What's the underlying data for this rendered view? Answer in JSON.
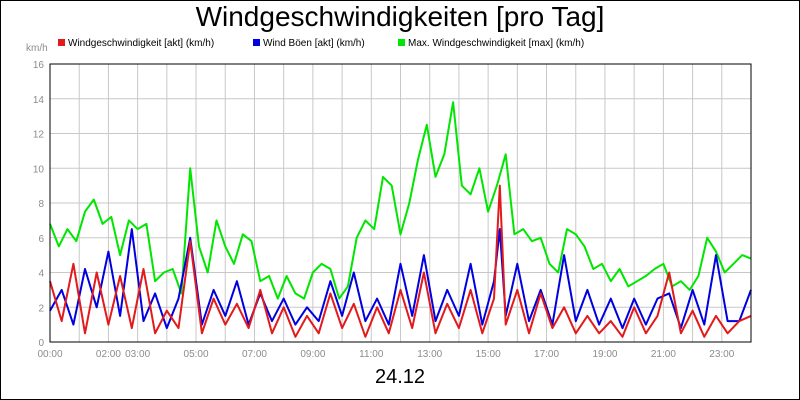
{
  "chart_data": {
    "type": "line",
    "title": "Windgeschwindigkeiten [pro Tag]",
    "ylabel": "km/h",
    "xlabel": "24.12",
    "xlim": [
      0,
      24
    ],
    "ylim": [
      0,
      16
    ],
    "grid": true,
    "legend_placement": "top-left",
    "yticks": [
      "0",
      "2",
      "4",
      "6",
      "8",
      "10",
      "12",
      "14",
      "16"
    ],
    "xticks": [
      {
        "value": 0,
        "label": "00:00"
      },
      {
        "value": 2,
        "label": "02:00"
      },
      {
        "value": 3,
        "label": "03:00"
      },
      {
        "value": 5,
        "label": "05:00"
      },
      {
        "value": 7,
        "label": "07:00"
      },
      {
        "value": 9,
        "label": "09:00"
      },
      {
        "value": 11,
        "label": "11:00"
      },
      {
        "value": 13,
        "label": "13:00"
      },
      {
        "value": 15,
        "label": "15:00"
      },
      {
        "value": 17,
        "label": "17:00"
      },
      {
        "value": 19,
        "label": "19:00"
      },
      {
        "value": 21,
        "label": "21:00"
      },
      {
        "value": 23,
        "label": "23:00"
      }
    ],
    "series": [
      {
        "name": "Windgeschwindigkeit [akt] (km/h)",
        "color": "#e31a1c",
        "x": [
          0,
          0.4,
          0.8,
          1.2,
          1.6,
          2.0,
          2.4,
          2.8,
          3.2,
          3.6,
          4.0,
          4.4,
          4.8,
          5.2,
          5.6,
          6.0,
          6.4,
          6.8,
          7.2,
          7.6,
          8.0,
          8.4,
          8.8,
          9.2,
          9.6,
          10.0,
          10.4,
          10.8,
          11.2,
          11.6,
          12.0,
          12.4,
          12.8,
          13.2,
          13.6,
          14.0,
          14.4,
          14.8,
          15.2,
          15.4,
          15.6,
          16.0,
          16.4,
          16.8,
          17.2,
          17.6,
          18.0,
          18.4,
          18.8,
          19.2,
          19.6,
          20.0,
          20.4,
          20.8,
          21.2,
          21.6,
          22.0,
          22.4,
          22.8,
          23.2,
          23.6,
          24.0
        ],
        "y": [
          3.5,
          1.2,
          4.5,
          0.5,
          4.0,
          1.0,
          3.8,
          0.8,
          4.2,
          0.5,
          1.8,
          0.8,
          5.8,
          0.5,
          2.5,
          1.0,
          2.2,
          0.8,
          3.0,
          0.5,
          2.0,
          0.3,
          1.5,
          0.5,
          2.8,
          0.8,
          2.2,
          0.3,
          2.0,
          0.5,
          3.0,
          0.8,
          4.0,
          0.5,
          2.2,
          0.8,
          3.0,
          0.5,
          2.5,
          9.0,
          1.0,
          3.0,
          0.5,
          2.8,
          0.8,
          2.0,
          0.5,
          1.5,
          0.5,
          1.2,
          0.3,
          2.0,
          0.5,
          1.5,
          4.0,
          0.5,
          1.8,
          0.3,
          1.5,
          0.5,
          1.2,
          1.5
        ]
      },
      {
        "name": "Wind Böen [akt] (km/h)",
        "color": "#0000e0",
        "x": [
          0,
          0.4,
          0.8,
          1.2,
          1.6,
          2.0,
          2.4,
          2.8,
          3.2,
          3.6,
          4.0,
          4.4,
          4.8,
          5.2,
          5.6,
          6.0,
          6.4,
          6.8,
          7.2,
          7.6,
          8.0,
          8.4,
          8.8,
          9.2,
          9.6,
          10.0,
          10.4,
          10.8,
          11.2,
          11.6,
          12.0,
          12.4,
          12.8,
          13.2,
          13.6,
          14.0,
          14.4,
          14.8,
          15.2,
          15.4,
          15.6,
          16.0,
          16.4,
          16.8,
          17.2,
          17.6,
          18.0,
          18.4,
          18.8,
          19.2,
          19.6,
          20.0,
          20.4,
          20.8,
          21.2,
          21.6,
          22.0,
          22.4,
          22.8,
          23.2,
          23.6,
          24.0
        ],
        "y": [
          1.8,
          3.0,
          1.0,
          4.2,
          2.0,
          5.2,
          1.5,
          6.5,
          1.2,
          2.8,
          0.8,
          2.5,
          6.0,
          1.0,
          3.0,
          1.5,
          3.5,
          1.0,
          2.8,
          1.2,
          2.5,
          1.0,
          2.0,
          1.2,
          3.5,
          1.5,
          4.0,
          1.2,
          2.5,
          1.0,
          4.5,
          1.5,
          5.0,
          1.2,
          3.0,
          1.5,
          4.5,
          1.0,
          3.5,
          6.5,
          1.5,
          4.5,
          1.2,
          3.0,
          1.0,
          5.0,
          1.2,
          3.0,
          1.0,
          2.5,
          0.8,
          2.5,
          1.0,
          2.5,
          2.8,
          0.8,
          3.0,
          1.0,
          5.0,
          1.2,
          1.2,
          3.0
        ]
      },
      {
        "name": "Max. Windgeschwindigkeit [max] (km/h)",
        "color": "#00e600",
        "x": [
          0,
          0.3,
          0.6,
          0.9,
          1.2,
          1.5,
          1.8,
          2.1,
          2.4,
          2.7,
          3.0,
          3.3,
          3.6,
          3.9,
          4.2,
          4.5,
          4.8,
          5.1,
          5.4,
          5.7,
          6.0,
          6.3,
          6.6,
          6.9,
          7.2,
          7.5,
          7.8,
          8.1,
          8.4,
          8.7,
          9.0,
          9.3,
          9.6,
          9.9,
          10.2,
          10.5,
          10.8,
          11.1,
          11.4,
          11.7,
          12.0,
          12.3,
          12.6,
          12.9,
          13.2,
          13.5,
          13.8,
          14.1,
          14.4,
          14.7,
          15.0,
          15.3,
          15.6,
          15.9,
          16.2,
          16.5,
          16.8,
          17.1,
          17.4,
          17.7,
          18.0,
          18.3,
          18.6,
          18.9,
          19.2,
          19.5,
          19.8,
          20.1,
          20.4,
          20.7,
          21.0,
          21.3,
          21.6,
          21.9,
          22.2,
          22.5,
          22.8,
          23.1,
          23.4,
          23.7,
          24.0
        ],
        "y": [
          6.8,
          5.5,
          6.5,
          5.8,
          7.5,
          8.2,
          6.8,
          7.2,
          5.0,
          7.0,
          6.5,
          6.8,
          3.5,
          4.0,
          4.2,
          2.8,
          10.0,
          5.5,
          4.0,
          7.0,
          5.5,
          4.5,
          6.2,
          5.8,
          3.5,
          3.8,
          2.5,
          3.8,
          2.8,
          2.5,
          4.0,
          4.5,
          4.2,
          2.5,
          3.2,
          6.0,
          7.0,
          6.5,
          9.5,
          9.0,
          6.2,
          8.0,
          10.5,
          12.5,
          9.5,
          10.8,
          13.8,
          9.0,
          8.5,
          10.0,
          7.5,
          9.0,
          10.8,
          6.2,
          6.5,
          5.8,
          6.0,
          4.5,
          4.0,
          6.5,
          6.2,
          5.5,
          4.2,
          4.5,
          3.5,
          4.2,
          3.2,
          3.5,
          3.8,
          4.2,
          4.5,
          3.2,
          3.5,
          3.0,
          3.8,
          6.0,
          5.2,
          4.0,
          4.5,
          5.0,
          4.8
        ]
      }
    ]
  },
  "legend": [
    {
      "label": "Windgeschwindigkeit [akt] (km/h)",
      "color": "#e31a1c"
    },
    {
      "label": "Wind Böen [akt] (km/h)",
      "color": "#0000e0"
    },
    {
      "label": "Max. Windgeschwindigkeit [max] (km/h)",
      "color": "#00e600"
    }
  ]
}
